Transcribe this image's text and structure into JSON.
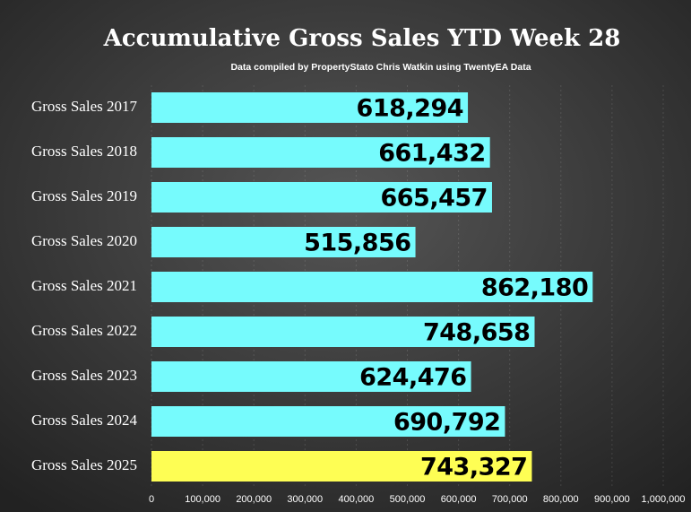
{
  "chart_data": {
    "type": "barh",
    "title": "Accumulative Gross Sales YTD Week 28",
    "subtitle": "Data compiled by PropertyStato Chris Watkin using TwentyEA Data",
    "categories": [
      "Gross Sales 2017",
      "Gross Sales 2018",
      "Gross Sales 2019",
      "Gross Sales 2020",
      "Gross Sales 2021",
      "Gross Sales 2022",
      "Gross Sales 2023",
      "Gross Sales 2024",
      "Gross Sales 2025"
    ],
    "values": [
      618294,
      661432,
      665457,
      515856,
      862180,
      748658,
      624476,
      690792,
      743327
    ],
    "value_labels": [
      "618,294",
      "661,432",
      "665,457",
      "515,856",
      "862,180",
      "748,658",
      "624,476",
      "690,792",
      "743,327"
    ],
    "colors": [
      "#76fbfd",
      "#76fbfd",
      "#76fbfd",
      "#76fbfd",
      "#76fbfd",
      "#76fbfd",
      "#76fbfd",
      "#76fbfd",
      "#fefe54"
    ],
    "xlim": [
      0,
      1000000
    ],
    "xticks": [
      0,
      {
        "value": 100000,
        "label": "100,000"
      },
      {
        "value": 200000,
        "label": "200,000"
      },
      {
        "value": 300000,
        "label": "300,000"
      },
      {
        "value": 400000,
        "label": "400,000"
      },
      {
        "value": 500000,
        "label": "500,000"
      },
      {
        "value": 600000,
        "label": "600,000"
      },
      {
        "value": 700000,
        "label": "700,000"
      },
      {
        "value": 800000,
        "label": "800,000"
      },
      {
        "value": 900000,
        "label": "900,000"
      },
      {
        "value": 1000000,
        "label": "1,000,000"
      }
    ],
    "grid": true
  }
}
